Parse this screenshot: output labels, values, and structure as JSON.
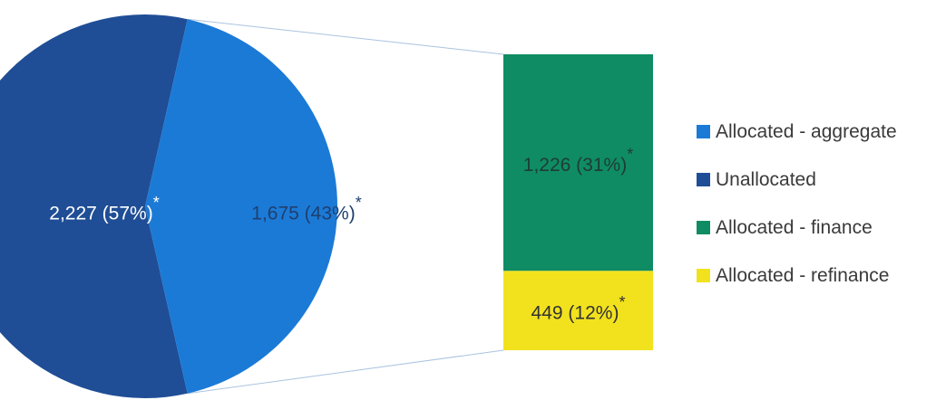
{
  "chart_data": {
    "type": "pie",
    "title": "",
    "unit_note": "",
    "slices": [
      {
        "name": "Unallocated",
        "value": 2227,
        "percent": 57,
        "label": "2,227 (57%)",
        "marker": "*",
        "color": "#1f4e96"
      },
      {
        "name": "Allocated - aggregate",
        "value": 1675,
        "percent": 43,
        "label": "1,675 (43%)",
        "marker": "*",
        "color": "#1b7ad6"
      }
    ],
    "breakdown": {
      "of": "Allocated - aggregate",
      "type": "stacked-bar",
      "segments": [
        {
          "name": "Allocated - finance",
          "value": 1226,
          "percent": 31,
          "label": "1,226 (31%)",
          "marker": "*",
          "color": "#0f8c63"
        },
        {
          "name": "Allocated - refinance",
          "value": 449,
          "percent": 12,
          "label": "449 (12%)",
          "marker": "*",
          "color": "#f2e21e"
        }
      ]
    },
    "legend": {
      "placement": "right",
      "items": [
        {
          "label": "Allocated - aggregate",
          "color": "#1b7ad6"
        },
        {
          "label": "Unallocated",
          "color": "#1f4e96"
        },
        {
          "label": "Allocated - finance",
          "color": "#0f8c63"
        },
        {
          "label": "Allocated - refinance",
          "color": "#f2e21e"
        }
      ]
    }
  }
}
